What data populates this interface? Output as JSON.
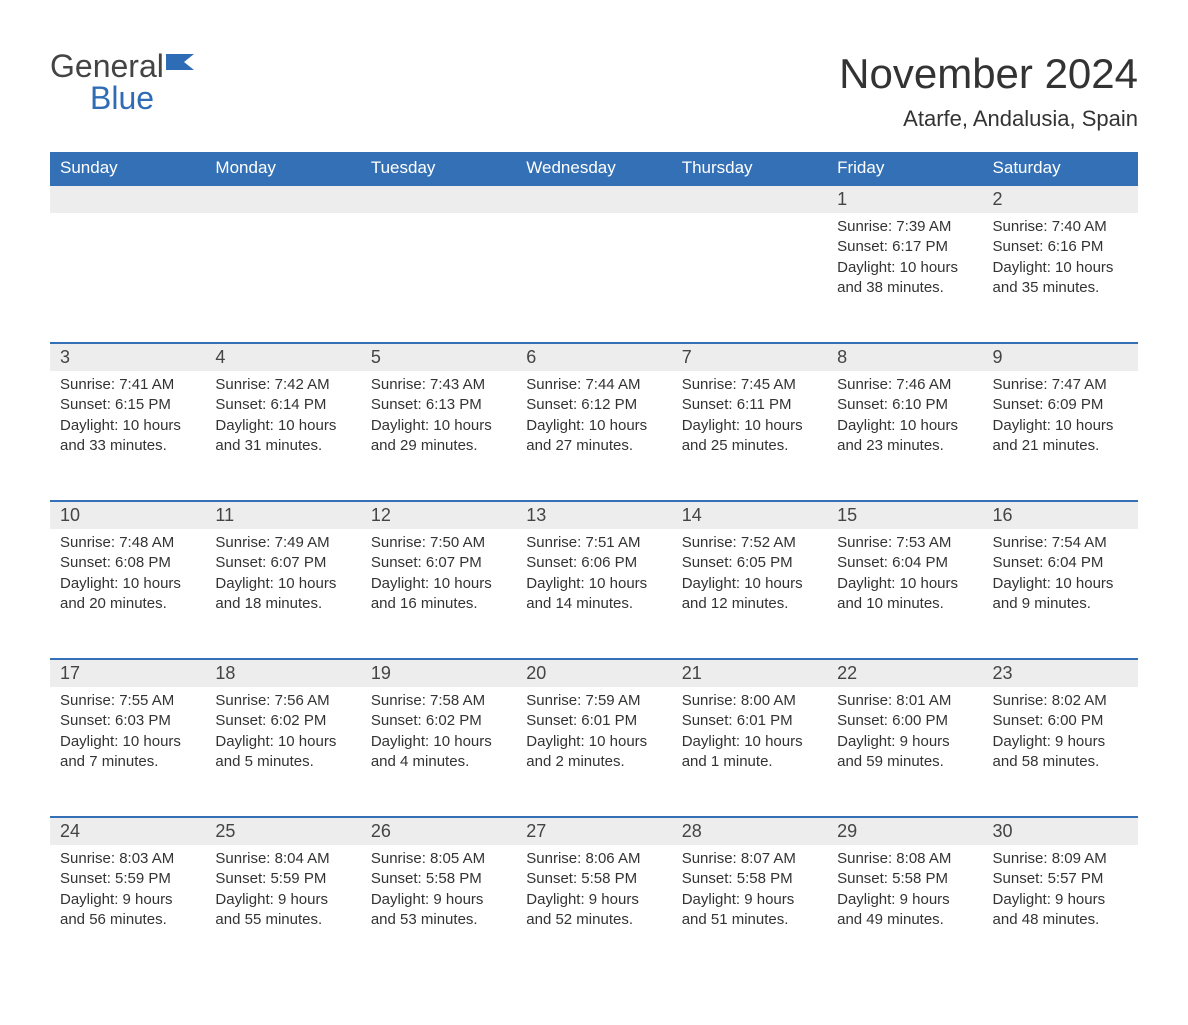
{
  "logo": {
    "general": "General",
    "blue": "Blue",
    "icon_color": "#2e6db5"
  },
  "header": {
    "month_title": "November 2024",
    "location": "Atarfe, Andalusia, Spain"
  },
  "colors": {
    "header_bg": "#3470b5",
    "header_text": "#ffffff",
    "day_number_bg": "#ededed",
    "week_border": "#3470b5",
    "text": "#333333",
    "logo_blue": "#2e6db5"
  },
  "day_headers": [
    "Sunday",
    "Monday",
    "Tuesday",
    "Wednesday",
    "Thursday",
    "Friday",
    "Saturday"
  ],
  "weeks": [
    [
      null,
      null,
      null,
      null,
      null,
      {
        "n": "1",
        "sr": "Sunrise: 7:39 AM",
        "ss": "Sunset: 6:17 PM",
        "d1": "Daylight: 10 hours",
        "d2": "and 38 minutes."
      },
      {
        "n": "2",
        "sr": "Sunrise: 7:40 AM",
        "ss": "Sunset: 6:16 PM",
        "d1": "Daylight: 10 hours",
        "d2": "and 35 minutes."
      }
    ],
    [
      {
        "n": "3",
        "sr": "Sunrise: 7:41 AM",
        "ss": "Sunset: 6:15 PM",
        "d1": "Daylight: 10 hours",
        "d2": "and 33 minutes."
      },
      {
        "n": "4",
        "sr": "Sunrise: 7:42 AM",
        "ss": "Sunset: 6:14 PM",
        "d1": "Daylight: 10 hours",
        "d2": "and 31 minutes."
      },
      {
        "n": "5",
        "sr": "Sunrise: 7:43 AM",
        "ss": "Sunset: 6:13 PM",
        "d1": "Daylight: 10 hours",
        "d2": "and 29 minutes."
      },
      {
        "n": "6",
        "sr": "Sunrise: 7:44 AM",
        "ss": "Sunset: 6:12 PM",
        "d1": "Daylight: 10 hours",
        "d2": "and 27 minutes."
      },
      {
        "n": "7",
        "sr": "Sunrise: 7:45 AM",
        "ss": "Sunset: 6:11 PM",
        "d1": "Daylight: 10 hours",
        "d2": "and 25 minutes."
      },
      {
        "n": "8",
        "sr": "Sunrise: 7:46 AM",
        "ss": "Sunset: 6:10 PM",
        "d1": "Daylight: 10 hours",
        "d2": "and 23 minutes."
      },
      {
        "n": "9",
        "sr": "Sunrise: 7:47 AM",
        "ss": "Sunset: 6:09 PM",
        "d1": "Daylight: 10 hours",
        "d2": "and 21 minutes."
      }
    ],
    [
      {
        "n": "10",
        "sr": "Sunrise: 7:48 AM",
        "ss": "Sunset: 6:08 PM",
        "d1": "Daylight: 10 hours",
        "d2": "and 20 minutes."
      },
      {
        "n": "11",
        "sr": "Sunrise: 7:49 AM",
        "ss": "Sunset: 6:07 PM",
        "d1": "Daylight: 10 hours",
        "d2": "and 18 minutes."
      },
      {
        "n": "12",
        "sr": "Sunrise: 7:50 AM",
        "ss": "Sunset: 6:07 PM",
        "d1": "Daylight: 10 hours",
        "d2": "and 16 minutes."
      },
      {
        "n": "13",
        "sr": "Sunrise: 7:51 AM",
        "ss": "Sunset: 6:06 PM",
        "d1": "Daylight: 10 hours",
        "d2": "and 14 minutes."
      },
      {
        "n": "14",
        "sr": "Sunrise: 7:52 AM",
        "ss": "Sunset: 6:05 PM",
        "d1": "Daylight: 10 hours",
        "d2": "and 12 minutes."
      },
      {
        "n": "15",
        "sr": "Sunrise: 7:53 AM",
        "ss": "Sunset: 6:04 PM",
        "d1": "Daylight: 10 hours",
        "d2": "and 10 minutes."
      },
      {
        "n": "16",
        "sr": "Sunrise: 7:54 AM",
        "ss": "Sunset: 6:04 PM",
        "d1": "Daylight: 10 hours",
        "d2": "and 9 minutes."
      }
    ],
    [
      {
        "n": "17",
        "sr": "Sunrise: 7:55 AM",
        "ss": "Sunset: 6:03 PM",
        "d1": "Daylight: 10 hours",
        "d2": "and 7 minutes."
      },
      {
        "n": "18",
        "sr": "Sunrise: 7:56 AM",
        "ss": "Sunset: 6:02 PM",
        "d1": "Daylight: 10 hours",
        "d2": "and 5 minutes."
      },
      {
        "n": "19",
        "sr": "Sunrise: 7:58 AM",
        "ss": "Sunset: 6:02 PM",
        "d1": "Daylight: 10 hours",
        "d2": "and 4 minutes."
      },
      {
        "n": "20",
        "sr": "Sunrise: 7:59 AM",
        "ss": "Sunset: 6:01 PM",
        "d1": "Daylight: 10 hours",
        "d2": "and 2 minutes."
      },
      {
        "n": "21",
        "sr": "Sunrise: 8:00 AM",
        "ss": "Sunset: 6:01 PM",
        "d1": "Daylight: 10 hours",
        "d2": "and 1 minute."
      },
      {
        "n": "22",
        "sr": "Sunrise: 8:01 AM",
        "ss": "Sunset: 6:00 PM",
        "d1": "Daylight: 9 hours",
        "d2": "and 59 minutes."
      },
      {
        "n": "23",
        "sr": "Sunrise: 8:02 AM",
        "ss": "Sunset: 6:00 PM",
        "d1": "Daylight: 9 hours",
        "d2": "and 58 minutes."
      }
    ],
    [
      {
        "n": "24",
        "sr": "Sunrise: 8:03 AM",
        "ss": "Sunset: 5:59 PM",
        "d1": "Daylight: 9 hours",
        "d2": "and 56 minutes."
      },
      {
        "n": "25",
        "sr": "Sunrise: 8:04 AM",
        "ss": "Sunset: 5:59 PM",
        "d1": "Daylight: 9 hours",
        "d2": "and 55 minutes."
      },
      {
        "n": "26",
        "sr": "Sunrise: 8:05 AM",
        "ss": "Sunset: 5:58 PM",
        "d1": "Daylight: 9 hours",
        "d2": "and 53 minutes."
      },
      {
        "n": "27",
        "sr": "Sunrise: 8:06 AM",
        "ss": "Sunset: 5:58 PM",
        "d1": "Daylight: 9 hours",
        "d2": "and 52 minutes."
      },
      {
        "n": "28",
        "sr": "Sunrise: 8:07 AM",
        "ss": "Sunset: 5:58 PM",
        "d1": "Daylight: 9 hours",
        "d2": "and 51 minutes."
      },
      {
        "n": "29",
        "sr": "Sunrise: 8:08 AM",
        "ss": "Sunset: 5:58 PM",
        "d1": "Daylight: 9 hours",
        "d2": "and 49 minutes."
      },
      {
        "n": "30",
        "sr": "Sunrise: 8:09 AM",
        "ss": "Sunset: 5:57 PM",
        "d1": "Daylight: 9 hours",
        "d2": "and 48 minutes."
      }
    ]
  ]
}
